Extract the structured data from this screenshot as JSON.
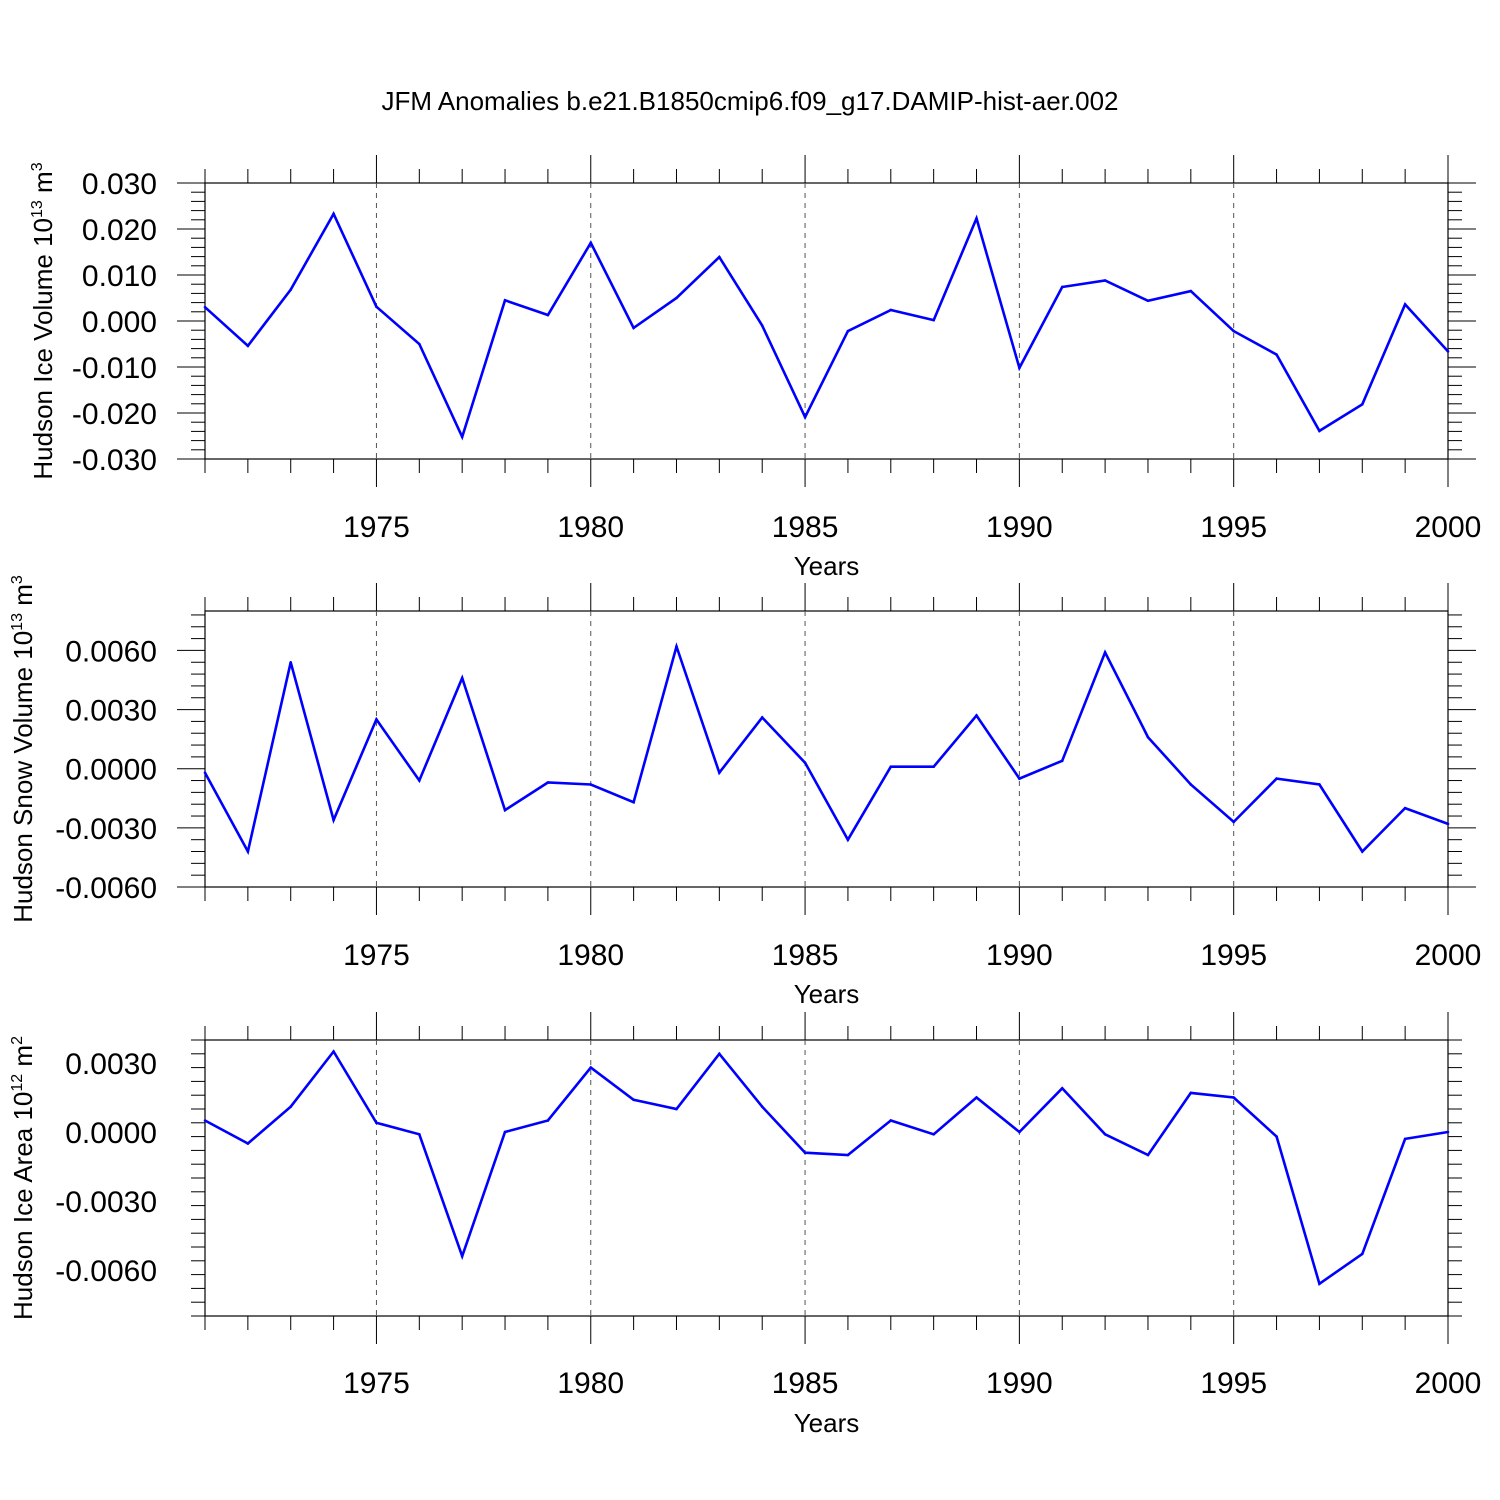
{
  "title": "JFM Anomalies b.e21.B1850cmip6.f09_g17.DAMIP-hist-aer.002",
  "line_color": "#0000ff",
  "chart_data": [
    {
      "type": "line",
      "title": "JFM Anomalies b.e21.B1850cmip6.f09_g17.DAMIP-hist-aer.002",
      "xlabel": "Years",
      "ylabel_main": "Hudson Ice Volume 10",
      "ylabel_sup": "13",
      "ylabel_unit": " m",
      "ylabel_unit_sup": "3",
      "xlim": [
        1971,
        2000
      ],
      "ylim": [
        -0.03,
        0.03
      ],
      "xticks": [
        1975,
        1980,
        1985,
        1990,
        1995,
        2000
      ],
      "xtick_labels": [
        "1975",
        "1980",
        "1985",
        "1990",
        "1995",
        "2000"
      ],
      "yticks": [
        0.03,
        0.02,
        0.01,
        0.0,
        -0.01,
        -0.02,
        -0.03
      ],
      "ytick_labels": [
        "0.030",
        "0.020",
        "0.010",
        "0.000",
        "-0.010",
        "-0.020",
        "-0.030"
      ],
      "x": [
        1971,
        1972,
        1973,
        1974,
        1975,
        1976,
        1977,
        1978,
        1979,
        1980,
        1981,
        1982,
        1983,
        1984,
        1985,
        1986,
        1987,
        1988,
        1989,
        1990,
        1991,
        1992,
        1993,
        1994,
        1995,
        1996,
        1997,
        1998,
        1999,
        2000
      ],
      "series": [
        {
          "name": "Hudson Ice Volume",
          "values": [
            0.003,
            -0.0054,
            0.0068,
            0.0233,
            0.0031,
            -0.005,
            -0.0252,
            0.0045,
            0.0013,
            0.017,
            -0.0015,
            0.005,
            0.0139,
            -0.001,
            -0.0209,
            -0.0022,
            0.0024,
            0.0002,
            0.0223,
            -0.0102,
            0.0074,
            0.0088,
            0.0044,
            0.0065,
            -0.0022,
            -0.0073,
            -0.0239,
            -0.0181,
            0.0036,
            -0.0066
          ]
        }
      ]
    },
    {
      "type": "line",
      "xlabel": "Years",
      "ylabel_main": "Hudson Snow Volume 10",
      "ylabel_sup": "13",
      "ylabel_unit": " m",
      "ylabel_unit_sup": "3",
      "xlim": [
        1971,
        2000
      ],
      "ylim": [
        -0.006,
        0.008
      ],
      "xticks": [
        1975,
        1980,
        1985,
        1990,
        1995,
        2000
      ],
      "xtick_labels": [
        "1975",
        "1980",
        "1985",
        "1990",
        "1995",
        "2000"
      ],
      "yticks": [
        0.006,
        0.003,
        0.0,
        -0.003,
        -0.006
      ],
      "ytick_labels": [
        "0.0060",
        "0.0030",
        "0.0000",
        "-0.0030",
        "-0.0060"
      ],
      "x": [
        1971,
        1972,
        1973,
        1974,
        1975,
        1976,
        1977,
        1978,
        1979,
        1980,
        1981,
        1982,
        1983,
        1984,
        1985,
        1986,
        1987,
        1988,
        1989,
        1990,
        1991,
        1992,
        1993,
        1994,
        1995,
        1996,
        1997,
        1998,
        1999,
        2000
      ],
      "series": [
        {
          "name": "Hudson Snow Volume",
          "values": [
            -0.0002,
            -0.0042,
            0.0054,
            -0.0026,
            0.0025,
            -0.0006,
            0.0046,
            -0.0021,
            -0.0007,
            -0.0008,
            -0.0017,
            0.0062,
            -0.0002,
            0.0026,
            0.0003,
            -0.0036,
            0.0001,
            0.0001,
            0.0027,
            -0.0005,
            0.0004,
            0.0059,
            0.0016,
            -0.0008,
            -0.0027,
            -0.0005,
            -0.0008,
            -0.0042,
            -0.002,
            -0.0028
          ]
        }
      ]
    },
    {
      "type": "line",
      "xlabel": "Years",
      "ylabel_main": "Hudson Ice Area 10",
      "ylabel_sup": "12",
      "ylabel_unit": " m",
      "ylabel_unit_sup": "2",
      "xlim": [
        1971,
        2000
      ],
      "ylim": [
        -0.008,
        0.004
      ],
      "xticks": [
        1975,
        1980,
        1985,
        1990,
        1995,
        2000
      ],
      "xtick_labels": [
        "1975",
        "1980",
        "1985",
        "1990",
        "1995",
        "2000"
      ],
      "yticks": [
        0.003,
        0.0,
        -0.003,
        -0.006
      ],
      "ytick_labels": [
        "0.0030",
        "0.0000",
        "-0.0030",
        "-0.0060"
      ],
      "x": [
        1971,
        1972,
        1973,
        1974,
        1975,
        1976,
        1977,
        1978,
        1979,
        1980,
        1981,
        1982,
        1983,
        1984,
        1985,
        1986,
        1987,
        1988,
        1989,
        1990,
        1991,
        1992,
        1993,
        1994,
        1995,
        1996,
        1997,
        1998,
        1999,
        2000
      ],
      "series": [
        {
          "name": "Hudson Ice Area",
          "values": [
            0.0005,
            -0.0005,
            0.0011,
            0.0035,
            0.0004,
            -0.0001,
            -0.0054,
            0.0,
            0.0005,
            0.0028,
            0.0014,
            0.001,
            0.0034,
            0.0011,
            -0.0009,
            -0.001,
            0.0005,
            -0.0001,
            0.0015,
            0.0,
            0.0019,
            -0.0001,
            -0.001,
            0.0017,
            0.0015,
            -0.0002,
            -0.0066,
            -0.0053,
            -0.0003,
            0.0
          ]
        }
      ]
    }
  ]
}
